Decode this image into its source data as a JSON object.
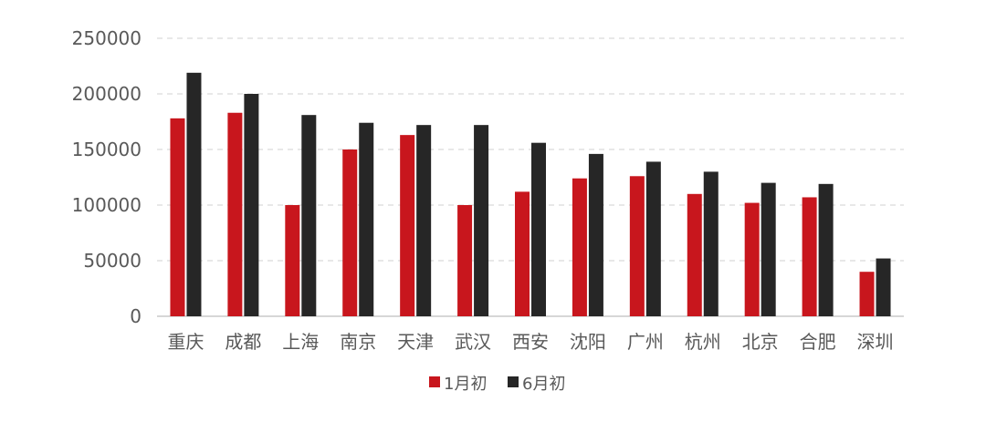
{
  "chart_data": {
    "type": "bar",
    "categories": [
      "重庆",
      "成都",
      "上海",
      "南京",
      "天津",
      "武汉",
      "西安",
      "沈阳",
      "广州",
      "杭州",
      "北京",
      "合肥",
      "深圳"
    ],
    "series": [
      {
        "name": "1月初",
        "color": "#c8161d",
        "values": [
          178000,
          183000,
          100000,
          150000,
          163000,
          100000,
          112000,
          124000,
          126000,
          110000,
          102000,
          107000,
          40000
        ]
      },
      {
        "name": "6月初",
        "color": "#262626",
        "values": [
          219000,
          200000,
          181000,
          174000,
          172000,
          172000,
          156000,
          146000,
          139000,
          130000,
          120000,
          119000,
          52000
        ]
      }
    ],
    "yticks": [
      "0",
      "50000",
      "100000",
      "150000",
      "200000",
      "250000"
    ],
    "ylim": [
      0,
      250000
    ],
    "grid": true,
    "legend_position": "bottom"
  }
}
